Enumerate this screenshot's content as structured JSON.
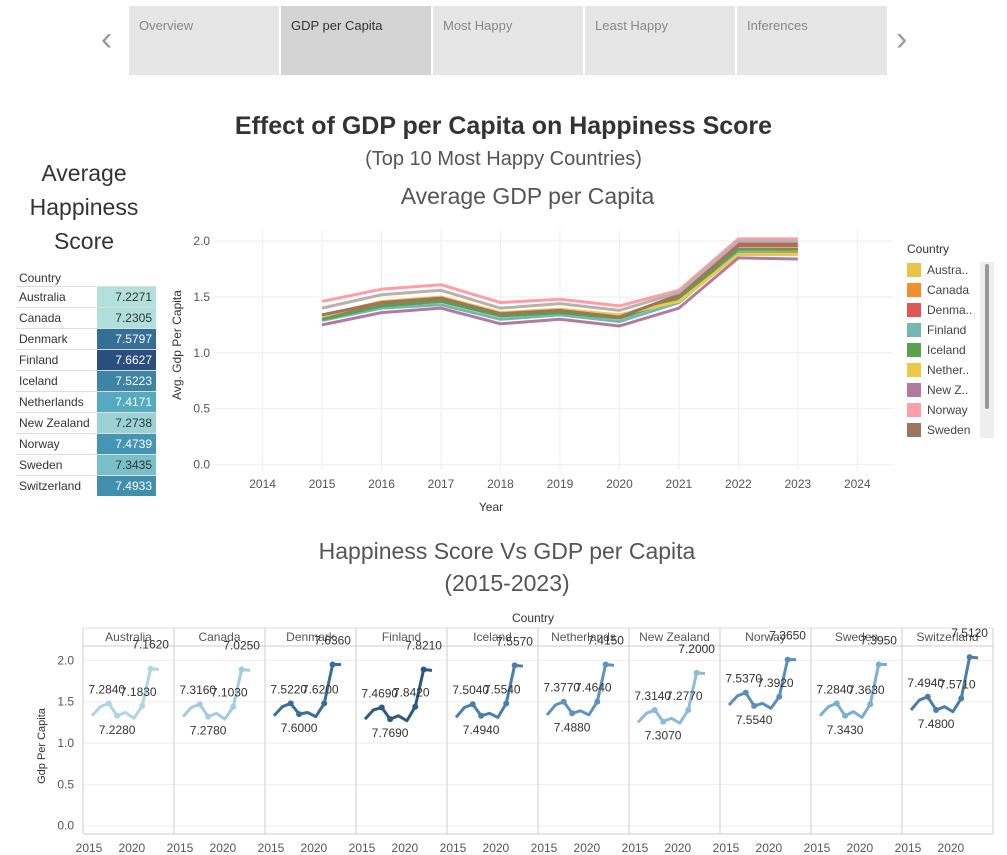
{
  "nav": {
    "tabs": [
      "Overview",
      "GDP per Capita",
      "Most Happy",
      "Least Happy",
      "Inferences"
    ],
    "active_index": 1
  },
  "title": "Effect of GDP per Capita on Happiness Score",
  "subtitle": "(Top 10 Most Happy Countries)",
  "avg_happiness": {
    "title": "Average Happiness Score",
    "header": "Country",
    "rows": [
      {
        "country": "Australia",
        "value": "7.2271"
      },
      {
        "country": "Canada",
        "value": "7.2305"
      },
      {
        "country": "Denmark",
        "value": "7.5797"
      },
      {
        "country": "Finland",
        "value": "7.6627"
      },
      {
        "country": "Iceland",
        "value": "7.5223"
      },
      {
        "country": "Netherlands",
        "value": "7.4171"
      },
      {
        "country": "New Zealand",
        "value": "7.2738"
      },
      {
        "country": "Norway",
        "value": "7.4739"
      },
      {
        "country": "Sweden",
        "value": "7.3435"
      },
      {
        "country": "Switzerland",
        "value": "7.4933"
      }
    ]
  },
  "legend": {
    "title": "Country",
    "items": [
      {
        "label": "Austra..",
        "color": "#e8c547"
      },
      {
        "label": "Canada",
        "color": "#f28e2b"
      },
      {
        "label": "Denma..",
        "color": "#e15759"
      },
      {
        "label": "Finland",
        "color": "#76b7b2"
      },
      {
        "label": "Iceland",
        "color": "#59a14f"
      },
      {
        "label": "Nether..",
        "color": "#edc948"
      },
      {
        "label": "New Z..",
        "color": "#b07aa1"
      },
      {
        "label": "Norway",
        "color": "#ff9da7"
      },
      {
        "label": "Sweden",
        "color": "#9c755f"
      }
    ]
  },
  "chart_data": [
    {
      "type": "line",
      "title": "Average GDP per Capita",
      "xlabel": "Year",
      "ylabel": "Avg. Gdp Per Capita",
      "xlim": [
        2013.2,
        2024.6
      ],
      "ylim": [
        -0.05,
        2.1
      ],
      "x_ticks": [
        2014,
        2015,
        2016,
        2017,
        2018,
        2019,
        2020,
        2021,
        2022,
        2023,
        2024
      ],
      "y_ticks": [
        0.0,
        0.5,
        1.0,
        1.5,
        2.0
      ],
      "y_tick_labels": [
        "0.0",
        "0.5",
        "1.0",
        "1.5",
        "2.0"
      ],
      "x": [
        2015,
        2016,
        2017,
        2018,
        2019,
        2020,
        2021,
        2022,
        2023
      ],
      "series": [
        {
          "name": "Australia",
          "color": "#e8c547",
          "values": [
            1.33,
            1.45,
            1.48,
            1.35,
            1.38,
            1.33,
            1.5,
            1.92,
            1.92
          ]
        },
        {
          "name": "Canada",
          "color": "#f28e2b",
          "values": [
            1.33,
            1.44,
            1.47,
            1.34,
            1.37,
            1.32,
            1.49,
            1.91,
            1.91
          ]
        },
        {
          "name": "Denmark",
          "color": "#e15759",
          "values": [
            1.33,
            1.44,
            1.48,
            1.35,
            1.38,
            1.33,
            1.5,
            1.96,
            1.96
          ]
        },
        {
          "name": "Finland",
          "color": "#76b7b2",
          "values": [
            1.29,
            1.4,
            1.43,
            1.3,
            1.34,
            1.28,
            1.45,
            1.9,
            1.89
          ]
        },
        {
          "name": "Iceland",
          "color": "#59a14f",
          "values": [
            1.3,
            1.42,
            1.46,
            1.33,
            1.36,
            1.31,
            1.48,
            1.93,
            1.93
          ]
        },
        {
          "name": "Netherlands",
          "color": "#edc948",
          "values": [
            1.33,
            1.46,
            1.5,
            1.36,
            1.39,
            1.34,
            1.46,
            1.88,
            1.88
          ]
        },
        {
          "name": "New Zealand",
          "color": "#b07aa1",
          "values": [
            1.25,
            1.36,
            1.4,
            1.26,
            1.3,
            1.24,
            1.4,
            1.85,
            1.84
          ]
        },
        {
          "name": "Norway",
          "color": "#ff9da7",
          "values": [
            1.46,
            1.57,
            1.61,
            1.45,
            1.48,
            1.42,
            1.56,
            2.02,
            2.02
          ]
        },
        {
          "name": "Sweden",
          "color": "#9c755f",
          "values": [
            1.34,
            1.45,
            1.49,
            1.35,
            1.38,
            1.32,
            1.52,
            1.98,
            1.98
          ]
        },
        {
          "name": "Switzerland",
          "color": "#bab0ac",
          "values": [
            1.4,
            1.52,
            1.56,
            1.4,
            1.44,
            1.38,
            1.54,
            2.0,
            2.0
          ]
        }
      ]
    },
    {
      "type": "line",
      "title": "Happiness Score Vs GDP per Capita",
      "subtitle": "(2015-2023)",
      "column_header": "Country",
      "ylabel": "Gdp Per Capita",
      "ylim": [
        -0.1,
        2.15
      ],
      "y_ticks": [
        0.0,
        0.5,
        1.0,
        1.5,
        2.0
      ],
      "y_tick_labels": [
        "0.0",
        "0.5",
        "1.0",
        "1.5",
        "2.0"
      ],
      "x_tick_labels": [
        "2015",
        "2020"
      ],
      "x": [
        2015,
        2016,
        2017,
        2018,
        2019,
        2020,
        2021,
        2022,
        2023
      ],
      "panels": [
        {
          "country": "Australia",
          "color": "#aed4e6",
          "values": [
            1.33,
            1.44,
            1.48,
            1.33,
            1.37,
            1.3,
            1.45,
            1.9,
            1.89
          ],
          "labels": [
            {
              "text": "7.2840",
              "i": 2
            },
            {
              "text": "7.2280",
              "i": 3
            },
            {
              "text": "7.1830",
              "i": 6
            },
            {
              "text": "7.1620",
              "i": 7
            }
          ]
        },
        {
          "country": "Canada",
          "color": "#a2cce2",
          "values": [
            1.32,
            1.43,
            1.47,
            1.32,
            1.36,
            1.29,
            1.44,
            1.89,
            1.88
          ],
          "labels": [
            {
              "text": "7.3160",
              "i": 2
            },
            {
              "text": "7.2780",
              "i": 3
            },
            {
              "text": "7.1030",
              "i": 6
            },
            {
              "text": "7.0250",
              "i": 7
            }
          ]
        },
        {
          "country": "Denmark",
          "color": "#3a6e98",
          "values": [
            1.33,
            1.44,
            1.48,
            1.35,
            1.37,
            1.32,
            1.48,
            1.95,
            1.95
          ],
          "labels": [
            {
              "text": "7.5220",
              "i": 2
            },
            {
              "text": "7.6000",
              "i": 3
            },
            {
              "text": "7.6200",
              "i": 6
            },
            {
              "text": "7.6360",
              "i": 7
            }
          ]
        },
        {
          "country": "Finland",
          "color": "#2c5a80",
          "values": [
            1.29,
            1.4,
            1.43,
            1.29,
            1.33,
            1.27,
            1.44,
            1.89,
            1.88
          ],
          "labels": [
            {
              "text": "7.4690",
              "i": 2
            },
            {
              "text": "7.7690",
              "i": 3
            },
            {
              "text": "7.8420",
              "i": 6
            },
            {
              "text": "7.8210",
              "i": 7
            }
          ]
        },
        {
          "country": "Iceland",
          "color": "#4a7fab",
          "values": [
            1.31,
            1.43,
            1.47,
            1.33,
            1.36,
            1.31,
            1.48,
            1.94,
            1.93
          ],
          "labels": [
            {
              "text": "7.5040",
              "i": 2
            },
            {
              "text": "7.4940",
              "i": 3
            },
            {
              "text": "7.5540",
              "i": 6
            },
            {
              "text": "7.5570",
              "i": 7
            }
          ]
        },
        {
          "country": "Netherlands",
          "color": "#5e93bd",
          "values": [
            1.34,
            1.46,
            1.5,
            1.36,
            1.39,
            1.34,
            1.5,
            1.95,
            1.94
          ],
          "labels": [
            {
              "text": "7.3770",
              "i": 2
            },
            {
              "text": "7.4880",
              "i": 3
            },
            {
              "text": "7.4640",
              "i": 6
            },
            {
              "text": "7.4150",
              "i": 7
            }
          ]
        },
        {
          "country": "New Zealand",
          "color": "#8dbbd8",
          "values": [
            1.25,
            1.36,
            1.4,
            1.26,
            1.3,
            1.24,
            1.4,
            1.85,
            1.84
          ],
          "labels": [
            {
              "text": "7.3140",
              "i": 2
            },
            {
              "text": "7.3070",
              "i": 3
            },
            {
              "text": "7.2770",
              "i": 6
            },
            {
              "text": "7.2000",
              "i": 7
            }
          ]
        },
        {
          "country": "Norway",
          "color": "#5b8fba",
          "values": [
            1.46,
            1.57,
            1.61,
            1.45,
            1.48,
            1.42,
            1.56,
            2.01,
            2.01
          ],
          "labels": [
            {
              "text": "7.5370",
              "i": 2
            },
            {
              "text": "7.5540",
              "i": 3
            },
            {
              "text": "7.3920",
              "i": 6
            },
            {
              "text": "7.3650",
              "i": 7
            }
          ]
        },
        {
          "country": "Sweden",
          "color": "#7aafd1",
          "values": [
            1.33,
            1.44,
            1.48,
            1.33,
            1.38,
            1.31,
            1.47,
            1.95,
            1.95
          ],
          "labels": [
            {
              "text": "7.2840",
              "i": 2
            },
            {
              "text": "7.3430",
              "i": 3
            },
            {
              "text": "7.3630",
              "i": 6
            },
            {
              "text": "7.3950",
              "i": 7
            }
          ]
        },
        {
          "country": "Switzerland",
          "color": "#4a7fab",
          "values": [
            1.4,
            1.52,
            1.56,
            1.4,
            1.44,
            1.38,
            1.54,
            2.04,
            2.03
          ],
          "labels": [
            {
              "text": "7.4940",
              "i": 2
            },
            {
              "text": "7.4800",
              "i": 3
            },
            {
              "text": "7.5710",
              "i": 6
            },
            {
              "text": "7.5120",
              "i": 7
            }
          ]
        }
      ]
    }
  ]
}
